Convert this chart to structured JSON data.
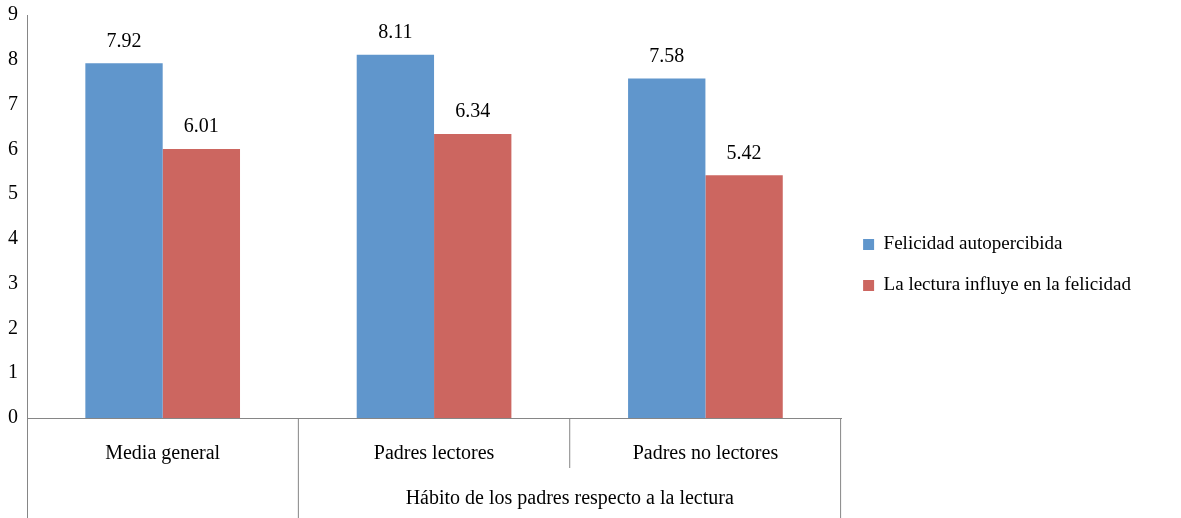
{
  "chart_data": {
    "type": "bar",
    "categories": [
      "Media general",
      "Padres lectores",
      "Padres no lectores"
    ],
    "series": [
      {
        "name": "Felicidad autopercibida",
        "color": "#6096cc",
        "values": [
          7.92,
          8.11,
          7.58
        ]
      },
      {
        "name": "La lectura influye en la felicidad",
        "color": "#cc6660",
        "values": [
          6.01,
          6.34,
          5.42
        ]
      }
    ],
    "ylim": [
      0,
      9
    ],
    "yticks": [
      0,
      1,
      2,
      3,
      4,
      5,
      6,
      7,
      8,
      9
    ],
    "grid": false,
    "legend": "right",
    "data_labels": true,
    "annotations": [
      "Hábito de los padres respecto a la lectura"
    ]
  }
}
